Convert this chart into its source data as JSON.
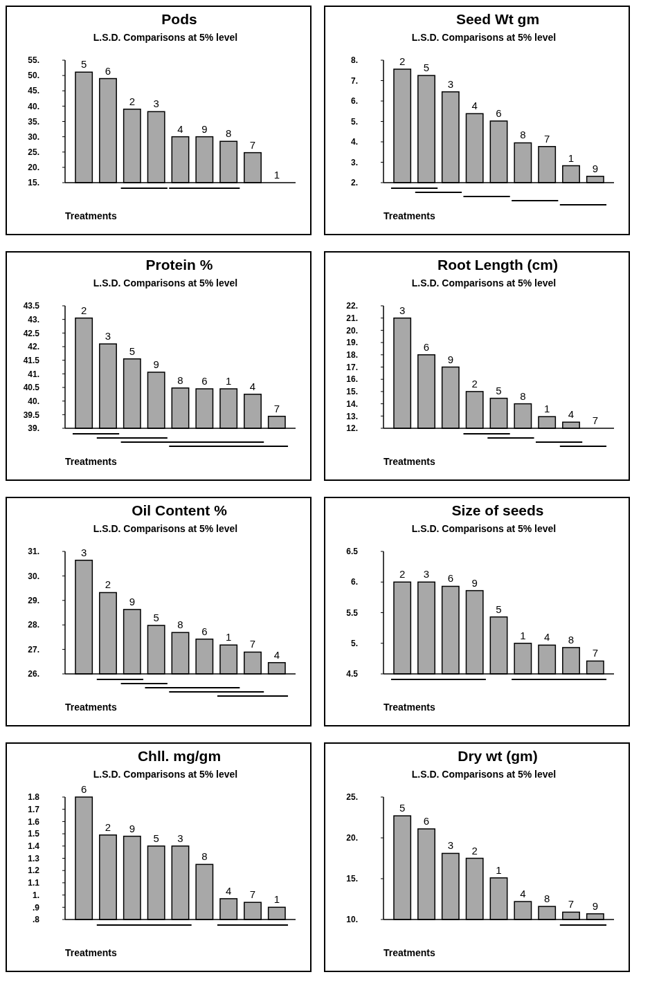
{
  "chart_data": [
    {
      "type": "bar",
      "title": "Pods",
      "subtitle": "L.S.D. Comparisons at 5% level",
      "xlabel": "Treatments",
      "categories": [
        "5",
        "6",
        "2",
        "3",
        "4",
        "9",
        "8",
        "7",
        "1"
      ],
      "values": [
        51.1,
        49,
        39,
        38.2,
        30,
        30,
        28.5,
        24.8,
        15
      ],
      "color": "#a8a8a8",
      "ylim": [
        15,
        55
      ],
      "yticks": [
        {
          "value": 15,
          "label": "15."
        },
        {
          "value": 20,
          "label": "20."
        },
        {
          "value": 25,
          "label": "25."
        },
        {
          "value": 30,
          "label": "30."
        },
        {
          "value": 35,
          "label": "35."
        },
        {
          "value": 40,
          "label": "40."
        },
        {
          "value": 45,
          "label": "45."
        },
        {
          "value": 50,
          "label": "50."
        },
        {
          "value": 55,
          "label": "55."
        }
      ]
    },
    {
      "type": "bar",
      "title": "Seed Wt gm",
      "subtitle": "L.S.D. Comparisons at 5% level",
      "xlabel": "Treatments",
      "categories": [
        "2",
        "5",
        "3",
        "4",
        "6",
        "8",
        "7",
        "1",
        "9"
      ],
      "values": [
        7.56,
        7.25,
        6.45,
        5.38,
        5.02,
        3.95,
        3.77,
        2.83,
        2.31
      ],
      "color": "#a8a8a8",
      "ylim": [
        2,
        8
      ],
      "yticks": [
        {
          "value": 2,
          "label": "2."
        },
        {
          "value": 3,
          "label": "3."
        },
        {
          "value": 4,
          "label": "4."
        },
        {
          "value": 5,
          "label": "5."
        },
        {
          "value": 6,
          "label": "6."
        },
        {
          "value": 7,
          "label": "7."
        },
        {
          "value": 8,
          "label": "8."
        }
      ]
    },
    {
      "type": "bar",
      "title": "Protein  %",
      "subtitle": "L.S.D. Comparisons at 5% level",
      "xlabel": "Treatments",
      "categories": [
        "2",
        "3",
        "5",
        "9",
        "8",
        "6",
        "1",
        "4",
        "7"
      ],
      "values": [
        43.05,
        42.1,
        41.55,
        41.06,
        40.48,
        40.45,
        40.45,
        40.25,
        39.44
      ],
      "color": "#a8a8a8",
      "ylim": [
        39,
        43.5
      ],
      "yticks": [
        {
          "value": 39,
          "label": "39."
        },
        39.5,
        {
          "value": 40,
          "label": "40."
        },
        40.5,
        {
          "value": 41,
          "label": "41."
        },
        41.5,
        {
          "value": 42,
          "label": "42."
        },
        42.5,
        {
          "value": 43,
          "label": "43."
        },
        43.5
      ]
    },
    {
      "type": "bar",
      "title": "Root Length (cm)",
      "subtitle": "L.S.D. Comparisons at 5% level",
      "xlabel": "Treatments",
      "categories": [
        "3",
        "6",
        "9",
        "2",
        "5",
        "8",
        "1",
        "4",
        "7"
      ],
      "values": [
        21,
        18,
        17,
        15,
        14.45,
        14,
        12.95,
        12.5,
        12
      ],
      "color": "#a8a8a8",
      "ylim": [
        12,
        22
      ],
      "yticks": [
        {
          "value": 12,
          "label": "12."
        },
        {
          "value": 13,
          "label": "13."
        },
        {
          "value": 14,
          "label": "14."
        },
        {
          "value": 15,
          "label": "15."
        },
        {
          "value": 16,
          "label": "16."
        },
        {
          "value": 17,
          "label": "17."
        },
        {
          "value": 18,
          "label": "18."
        },
        {
          "value": 19,
          "label": "19."
        },
        {
          "value": 20,
          "label": "20."
        },
        {
          "value": 21,
          "label": "21."
        },
        {
          "value": 22,
          "label": "22."
        }
      ]
    },
    {
      "type": "bar",
      "title": "Oil Content %",
      "subtitle": "L.S.D. Comparisons at 5% level",
      "xlabel": "Treatments",
      "categories": [
        "3",
        "2",
        "9",
        "5",
        "8",
        "6",
        "1",
        "7",
        "4"
      ],
      "values": [
        30.64,
        29.32,
        28.63,
        27.98,
        27.69,
        27.42,
        27.18,
        26.89,
        26.46
      ],
      "color": "#a8a8a8",
      "ylim": [
        26,
        31
      ],
      "yticks": [
        {
          "value": 26,
          "label": "26."
        },
        {
          "value": 27,
          "label": "27."
        },
        {
          "value": 28,
          "label": "28."
        },
        {
          "value": 29,
          "label": "29."
        },
        {
          "value": 30,
          "label": "30."
        },
        {
          "value": 31,
          "label": "31."
        }
      ]
    },
    {
      "type": "bar",
      "title": "Size of seeds",
      "subtitle": "L.S.D. Comparisons at 5% level",
      "xlabel": "Treatments",
      "categories": [
        "2",
        "3",
        "6",
        "9",
        "5",
        "1",
        "4",
        "8",
        "7"
      ],
      "values": [
        6,
        6,
        5.93,
        5.86,
        5.43,
        5,
        4.97,
        4.93,
        4.71
      ],
      "color": "#a8a8a8",
      "ylim": [
        4.5,
        6.5
      ],
      "yticks": [
        4.5,
        {
          "value": 5,
          "label": "5."
        },
        5.5,
        {
          "value": 6,
          "label": "6."
        },
        6.5
      ]
    },
    {
      "type": "bar",
      "title": "Chll. mg/gm",
      "subtitle": "L.S.D. Comparisons at 5% level",
      "xlabel": "Treatments",
      "categories": [
        "6",
        "2",
        "9",
        "5",
        "3",
        "8",
        "4",
        "7",
        "1"
      ],
      "values": [
        1.8,
        1.49,
        1.48,
        1.4,
        1.4,
        1.25,
        0.97,
        0.94,
        0.9
      ],
      "color": "#a8a8a8",
      "ylim": [
        0.8,
        1.8
      ],
      "yticks": [
        {
          "value": 0.8,
          "label": ".8"
        },
        {
          "value": 0.9,
          "label": ".9"
        },
        {
          "value": 1,
          "label": "1."
        },
        1.1,
        1.2,
        1.3,
        1.4,
        1.5,
        1.6,
        1.7,
        1.8
      ]
    },
    {
      "type": "bar",
      "title": "Dry wt (gm)",
      "subtitle": "L.S.D. Comparisons at 5% level",
      "xlabel": "Treatments",
      "categories": [
        "5",
        "6",
        "3",
        "2",
        "1",
        "4",
        "8",
        "7",
        "9"
      ],
      "values": [
        22.7,
        21.1,
        18.1,
        17.5,
        15.1,
        12.2,
        11.6,
        10.9,
        10.7
      ],
      "color": "#a8a8a8",
      "ylim": [
        10,
        25
      ],
      "yticks": [
        {
          "value": 10,
          "label": "10."
        },
        {
          "value": 15,
          "label": "15."
        },
        {
          "value": 20,
          "label": "20."
        },
        {
          "value": 25,
          "label": "25."
        }
      ]
    }
  ]
}
